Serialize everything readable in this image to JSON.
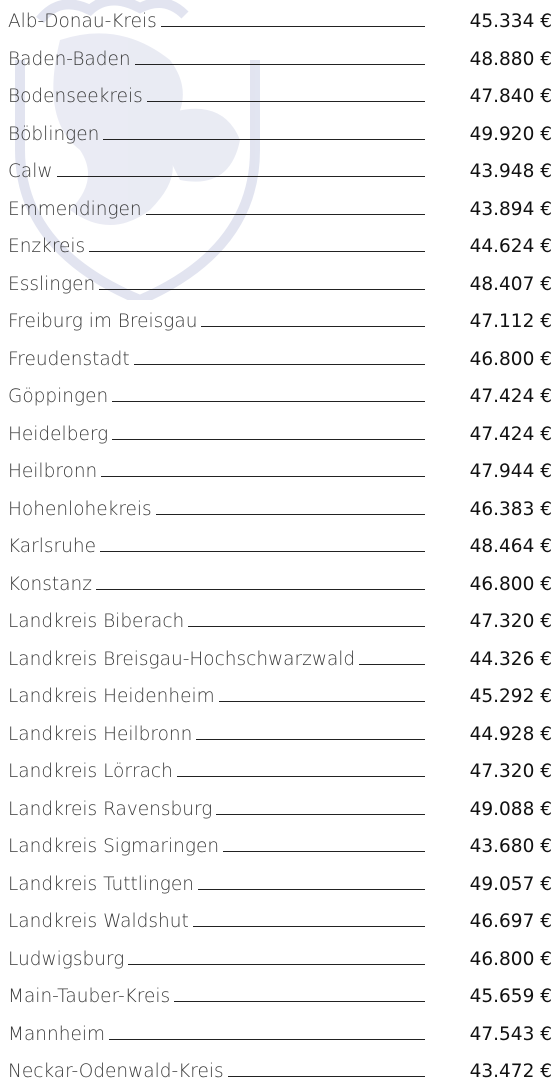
{
  "rows": [
    {
      "name": "Alb-Donau-Kreis",
      "value": "45.334 €"
    },
    {
      "name": "Baden-Baden",
      "value": "48.880 €"
    },
    {
      "name": "Bodenseekreis",
      "value": "47.840 €"
    },
    {
      "name": "Böblingen",
      "value": "49.920 €"
    },
    {
      "name": "Calw",
      "value": "43.948 €"
    },
    {
      "name": "Emmendingen",
      "value": "43.894 €"
    },
    {
      "name": "Enzkreis",
      "value": "44.624 €"
    },
    {
      "name": "Esslingen",
      "value": "48.407 €"
    },
    {
      "name": "Freiburg im Breisgau",
      "value": "47.112 €"
    },
    {
      "name": "Freudenstadt",
      "value": "46.800 €"
    },
    {
      "name": "Göppingen",
      "value": "47.424 €"
    },
    {
      "name": "Heidelberg",
      "value": "47.424 €"
    },
    {
      "name": "Heilbronn",
      "value": "47.944 €"
    },
    {
      "name": "Hohenlohekreis",
      "value": "46.383 €"
    },
    {
      "name": "Karlsruhe",
      "value": "48.464 €"
    },
    {
      "name": "Konstanz",
      "value": "46.800 €"
    },
    {
      "name": "Landkreis Biberach",
      "value": "47.320 €"
    },
    {
      "name": "Landkreis Breisgau-Hochschwarzwald",
      "value": "44.326 €"
    },
    {
      "name": "Landkreis Heidenheim",
      "value": "45.292 €"
    },
    {
      "name": "Landkreis Heilbronn",
      "value": "44.928 €"
    },
    {
      "name": "Landkreis Lörrach",
      "value": "47.320 €"
    },
    {
      "name": "Landkreis Ravensburg",
      "value": "49.088 €"
    },
    {
      "name": "Landkreis Sigmaringen",
      "value": "43.680 €"
    },
    {
      "name": "Landkreis Tuttlingen",
      "value": "49.057 €"
    },
    {
      "name": "Landkreis Waldshut",
      "value": "46.697 €"
    },
    {
      "name": "Ludwigsburg",
      "value": "46.800 €"
    },
    {
      "name": "Main-Tauber-Kreis",
      "value": "45.659 €"
    },
    {
      "name": "Mannheim",
      "value": "47.543 €"
    },
    {
      "name": "Neckar-Odenwald-Kreis",
      "value": "43.472 €"
    }
  ]
}
